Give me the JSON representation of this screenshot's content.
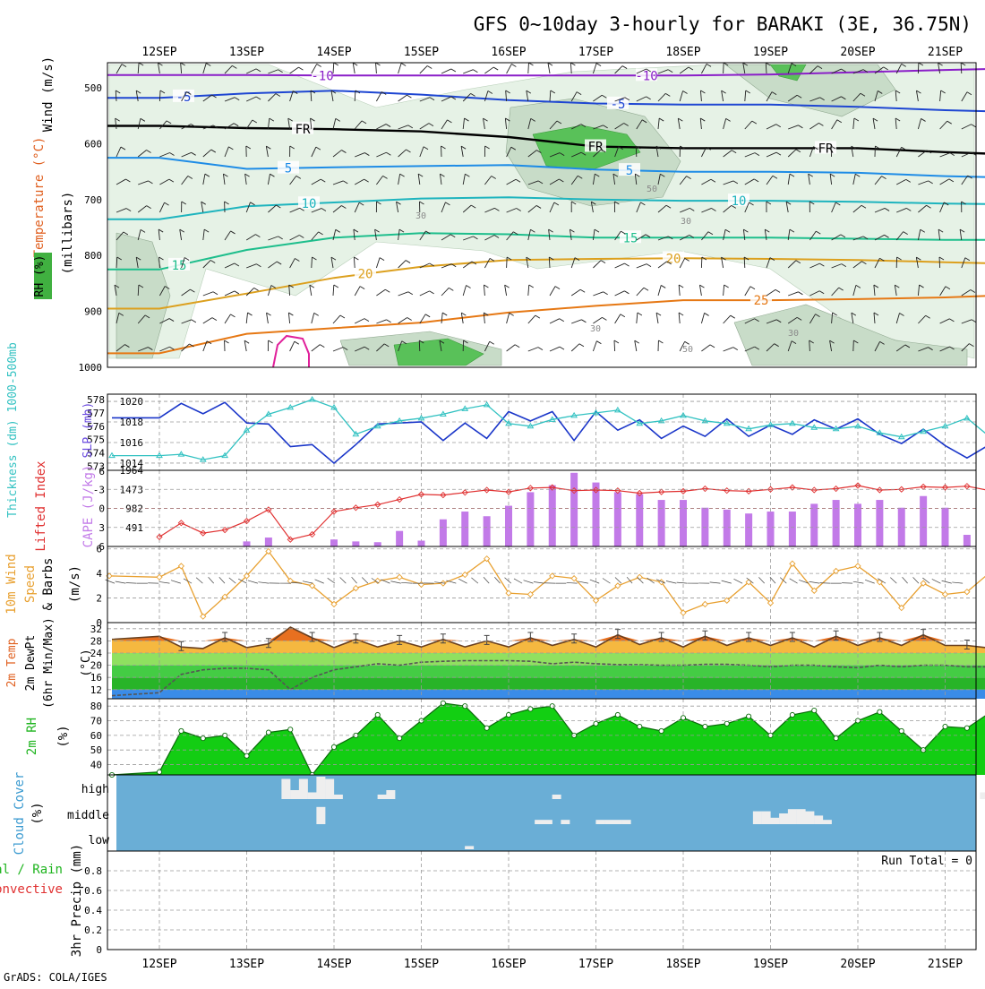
{
  "title": "GFS 0~10day 3-hourly for BARAKI (3E, 36.75N)",
  "footer": "GrADS: COLA/IGES",
  "dates": [
    "12SEP",
    "13SEP",
    "14SEP",
    "15SEP",
    "16SEP",
    "17SEP",
    "18SEP",
    "19SEP",
    "20SEP",
    "21SEP"
  ],
  "colors": {
    "rh_light": "#e6f2e6",
    "rh_mid": "#c8dcc8",
    "rh_dark": "#a8bca8",
    "rh_green": "#59c159",
    "slp": "#1a36c9",
    "thickness": "#33c2c2",
    "lifted_index": "#e03030",
    "cape": "#c27ae8",
    "wind_speed": "#e8a030",
    "temp": "#e87020",
    "dewpoint": "#555555",
    "rh2m": "#1ec81e",
    "cloud": "#6aaed6"
  },
  "chart_data": [
    {
      "type": "contour",
      "name": "upper-air",
      "ylabel_wind": "Wind (m/s)",
      "ylabel_temp": "Temperature (°C)",
      "ylabel_rh": "RH (%)",
      "ylabel_p": "(millibars)",
      "y_ticks": [
        500,
        600,
        700,
        800,
        900,
        1000
      ],
      "ylim": [
        455,
        1000
      ],
      "x": [
        0,
        1,
        2,
        3,
        4,
        5,
        6,
        7,
        8,
        9,
        9.55
      ],
      "isotherms": [
        {
          "label": "-10",
          "color": "#8a1ec8",
          "p": [
            477,
            477,
            478,
            478,
            478,
            478,
            478,
            476,
            472,
            468,
            466
          ]
        },
        {
          "label": "-5",
          "color": "#1e46d2",
          "p": [
            518,
            510,
            505,
            512,
            522,
            528,
            530,
            530,
            534,
            540,
            542
          ]
        },
        {
          "label": "FR",
          "color": "#000000",
          "p": [
            568,
            572,
            574,
            578,
            588,
            605,
            608,
            608,
            608,
            615,
            618
          ]
        },
        {
          "label": "5",
          "color": "#1e8ce6",
          "p": [
            625,
            645,
            642,
            640,
            638,
            646,
            650,
            650,
            652,
            658,
            660
          ]
        },
        {
          "label": "10",
          "color": "#1eb4be",
          "p": [
            735,
            712,
            705,
            698,
            696,
            700,
            702,
            702,
            704,
            707,
            708
          ]
        },
        {
          "label": "15",
          "color": "#1ebe8c",
          "p": [
            825,
            790,
            768,
            760,
            762,
            768,
            768,
            768,
            770,
            772,
            772
          ]
        },
        {
          "label": "20",
          "color": "#dca01e",
          "p": [
            895,
            868,
            840,
            820,
            808,
            806,
            805,
            806,
            808,
            812,
            814
          ]
        },
        {
          "label": "25",
          "color": "#e67814",
          "p": [
            975,
            940,
            930,
            920,
            902,
            890,
            880,
            880,
            878,
            875,
            872
          ]
        }
      ],
      "contour_labels": [
        "-10",
        "10",
        "-5",
        "-5",
        "-5",
        "FR",
        "FR",
        "FR",
        "5",
        "5",
        "10",
        "10",
        "15",
        "15",
        "20",
        "20",
        "25",
        "30",
        "30",
        "50",
        "50"
      ]
    },
    {
      "type": "line",
      "name": "slp-thickness",
      "ylabel_left": "Thickness (dm) 1000-500mb",
      "ylabel_right": "SLP (mb)",
      "left_ticks": [
        578,
        577,
        576,
        575,
        574,
        573
      ],
      "right_ticks": [
        1020,
        1018,
        1016,
        1014
      ],
      "left_lim": [
        572.7,
        578.4
      ],
      "right_lim": [
        1013.3,
        1020.7
      ],
      "x": [
        0,
        0.25,
        0.5,
        0.75,
        1,
        1.25,
        1.5,
        1.75,
        2,
        2.25,
        2.5,
        2.75,
        3,
        3.25,
        3.5,
        3.75,
        4,
        4.25,
        4.5,
        4.75,
        5,
        5.25,
        5.5,
        5.75,
        6,
        6.25,
        6.5,
        6.75,
        7,
        7.25,
        7.5,
        7.75,
        8,
        8.25,
        8.5,
        8.75,
        9,
        9.25,
        9.55
      ],
      "slp": [
        1018.4,
        1019.8,
        1018.8,
        1019.9,
        1017.9,
        1017.8,
        1015.6,
        1015.8,
        1014.0,
        1015.8,
        1017.8,
        1017.9,
        1018.0,
        1016.2,
        1017.9,
        1016.4,
        1019.0,
        1018.1,
        1019.0,
        1016.2,
        1019.0,
        1017.2,
        1018.2,
        1016.4,
        1017.6,
        1016.6,
        1018.3,
        1016.6,
        1017.7,
        1016.8,
        1018.2,
        1017.3,
        1018.3,
        1016.8,
        1015.9,
        1017.3,
        1015.7,
        1014.5,
        1016.0
      ],
      "thickness": [
        573.8,
        573.9,
        573.5,
        573.8,
        575.7,
        576.9,
        577.4,
        578.0,
        577.4,
        575.4,
        576.0,
        576.4,
        576.6,
        576.9,
        577.3,
        577.6,
        576.2,
        576.0,
        576.5,
        576.8,
        577.0,
        577.2,
        576.2,
        576.4,
        576.8,
        576.4,
        576.2,
        575.8,
        576.1,
        576.2,
        575.9,
        575.8,
        576.0,
        575.5,
        575.2,
        575.6,
        576.0,
        576.6,
        575.0
      ]
    },
    {
      "type": "bar+line",
      "name": "cape-li",
      "ylabel_left": "Lifted Index",
      "ylabel_right": "CAPE (J/kg)",
      "left_ticks": [
        "-3",
        "0",
        "3",
        "6"
      ],
      "li_top_label": "6",
      "right_ticks": [
        "1964",
        "1473",
        "982",
        "491"
      ],
      "li_lim": [
        -6,
        6
      ],
      "cape_lim": [
        0,
        1964
      ],
      "x": [
        0,
        0.25,
        0.5,
        0.75,
        1,
        1.25,
        1.5,
        1.75,
        2,
        2.25,
        2.5,
        2.75,
        3,
        3.25,
        3.5,
        3.75,
        4,
        4.25,
        4.5,
        4.75,
        5,
        5.25,
        5.5,
        5.75,
        6,
        6.25,
        6.5,
        6.75,
        7,
        7.25,
        7.5,
        7.75,
        8,
        8.25,
        8.5,
        8.75,
        9,
        9.25,
        9.55
      ],
      "cape": [
        0,
        0,
        0,
        0,
        130,
        230,
        0,
        0,
        180,
        130,
        110,
        400,
        150,
        700,
        900,
        780,
        1050,
        1400,
        1580,
        1900,
        1650,
        1400,
        1350,
        1200,
        1200,
        1000,
        950,
        850,
        900,
        900,
        1100,
        1200,
        1100,
        1200,
        1000,
        1300,
        1000,
        300,
        820
      ],
      "li": [
        4.5,
        2.3,
        3.9,
        3.4,
        2.0,
        0.2,
        4.9,
        4.1,
        0.5,
        -0.1,
        -0.6,
        -1.4,
        -2.2,
        -2.1,
        -2.5,
        -2.9,
        -2.6,
        -3.2,
        -3.3,
        -2.8,
        -2.9,
        -2.8,
        -2.4,
        -2.6,
        -2.7,
        -3.1,
        -2.8,
        -2.7,
        -3.0,
        -3.3,
        -2.9,
        -3.1,
        -3.6,
        -2.9,
        -3.0,
        -3.4,
        -3.3,
        -3.5,
        -2.7
      ]
    },
    {
      "type": "line",
      "name": "wind10m",
      "ylabel": "10m Wind Speed & Barbs",
      "units": "(m/s)",
      "y_ticks": [
        0,
        2,
        4,
        6
      ],
      "ylim": [
        0,
        6.2
      ],
      "x": [
        0,
        0.25,
        0.5,
        0.75,
        1,
        1.25,
        1.5,
        1.75,
        2,
        2.25,
        2.5,
        2.75,
        3,
        3.25,
        3.5,
        3.75,
        4,
        4.25,
        4.5,
        4.75,
        5,
        5.25,
        5.5,
        5.75,
        6,
        6.25,
        6.5,
        6.75,
        7,
        7.25,
        7.5,
        7.75,
        8,
        8.25,
        8.5,
        8.75,
        9,
        9.25,
        9.55
      ],
      "values": [
        3.7,
        4.6,
        0.5,
        2.1,
        3.8,
        5.8,
        3.4,
        3.0,
        1.5,
        2.8,
        3.4,
        3.7,
        3.1,
        3.2,
        3.9,
        5.2,
        2.4,
        2.3,
        3.8,
        3.6,
        1.8,
        3.0,
        3.7,
        3.3,
        0.8,
        1.5,
        1.8,
        3.3,
        1.6,
        4.8,
        2.6,
        4.2,
        4.6,
        3.3,
        1.2,
        3.2,
        2.3,
        2.5,
        4.3
      ]
    },
    {
      "type": "area",
      "name": "temp2m",
      "ylabel": "2m Temp 2m DewPt (6hr Min/Max)",
      "units": "(°C)",
      "y_ticks": [
        12,
        16,
        20,
        24,
        28,
        32
      ],
      "ylim": [
        9,
        34
      ],
      "x": [
        0,
        0.25,
        0.5,
        0.75,
        1,
        1.25,
        1.5,
        1.75,
        2,
        2.25,
        2.5,
        2.75,
        3,
        3.25,
        3.5,
        3.75,
        4,
        4.25,
        4.5,
        4.75,
        5,
        5.25,
        5.5,
        5.75,
        6,
        6.25,
        6.5,
        6.75,
        7,
        7.25,
        7.5,
        7.75,
        8,
        8.25,
        8.5,
        8.75,
        9,
        9.25,
        9.55
      ],
      "temp": [
        29.5,
        26,
        25.5,
        29,
        25.8,
        27,
        32.5,
        29,
        25.8,
        28.5,
        26,
        28,
        26,
        28.5,
        26,
        28,
        26,
        29,
        26.5,
        28.5,
        26,
        30,
        26.8,
        29,
        26,
        29.5,
        26.5,
        29,
        26.5,
        29,
        26,
        29.5,
        26.5,
        29,
        26.5,
        30,
        26.5,
        26.5,
        25.5
      ],
      "dewpoint": [
        11,
        17,
        18.5,
        19,
        19,
        18.5,
        12,
        16,
        18.5,
        19.5,
        20.5,
        20,
        21,
        21.3,
        21.5,
        21.5,
        21.5,
        21.3,
        20.5,
        21,
        20.5,
        20.2,
        20.2,
        20,
        20,
        20.3,
        20.3,
        20,
        19.5,
        20,
        20,
        19.5,
        19.2,
        20,
        19.5,
        20,
        20,
        19.5,
        19.5
      ]
    },
    {
      "type": "area",
      "name": "rh2m",
      "ylabel": "2m RH",
      "units": "(%)",
      "y_ticks": [
        40,
        50,
        60,
        70,
        80
      ],
      "ylim": [
        33,
        85
      ],
      "x": [
        0,
        0.25,
        0.5,
        0.75,
        1,
        1.25,
        1.5,
        1.75,
        2,
        2.25,
        2.5,
        2.75,
        3,
        3.25,
        3.5,
        3.75,
        4,
        4.25,
        4.5,
        4.75,
        5,
        5.25,
        5.5,
        5.75,
        6,
        6.25,
        6.5,
        6.75,
        7,
        7.25,
        7.5,
        7.75,
        8,
        8.25,
        8.5,
        8.75,
        9,
        9.25,
        9.55
      ],
      "values": [
        35,
        63,
        58,
        60,
        46,
        62,
        64,
        33,
        52,
        60,
        74,
        58,
        70,
        82,
        80,
        65,
        74,
        78,
        80,
        60,
        68,
        74,
        66,
        63,
        72,
        66,
        68,
        73,
        60,
        74,
        77,
        58,
        70,
        76,
        63,
        50,
        66,
        65,
        77
      ]
    },
    {
      "type": "bar",
      "name": "cloud",
      "ylabel": "Cloud Cover (%)",
      "levels": [
        "high",
        "middle",
        "low"
      ],
      "x_high": [
        1.45,
        1.55,
        1.65,
        1.75,
        1.85,
        1.95,
        2.05,
        2.55,
        2.65,
        4.55,
        9.45
      ],
      "high": [
        90,
        40,
        90,
        30,
        100,
        90,
        20,
        20,
        40,
        20,
        30
      ],
      "x_mid": [
        1.85,
        6.85,
        6.95,
        7.05,
        7.15,
        7.25,
        7.35,
        7.45,
        7.55,
        7.65,
        4.35,
        4.45,
        4.65,
        5.05,
        5.15,
        5.25,
        5.35
      ],
      "mid": [
        80,
        60,
        60,
        30,
        50,
        70,
        70,
        60,
        40,
        20,
        20,
        20,
        20,
        20,
        20,
        20,
        20
      ],
      "x_low": [
        3.55
      ],
      "low": [
        15
      ]
    },
    {
      "type": "bar",
      "name": "precip",
      "ylabel_total": "Total / Rain",
      "ylabel_conv": "Convective",
      "ylabel": "3hr Precip (mm)",
      "run_total": "Run Total = 0",
      "y_ticks": [
        "0",
        "0.2",
        "0.4",
        "0.6",
        "0.8"
      ],
      "ylim": [
        0,
        1
      ],
      "values": []
    }
  ]
}
